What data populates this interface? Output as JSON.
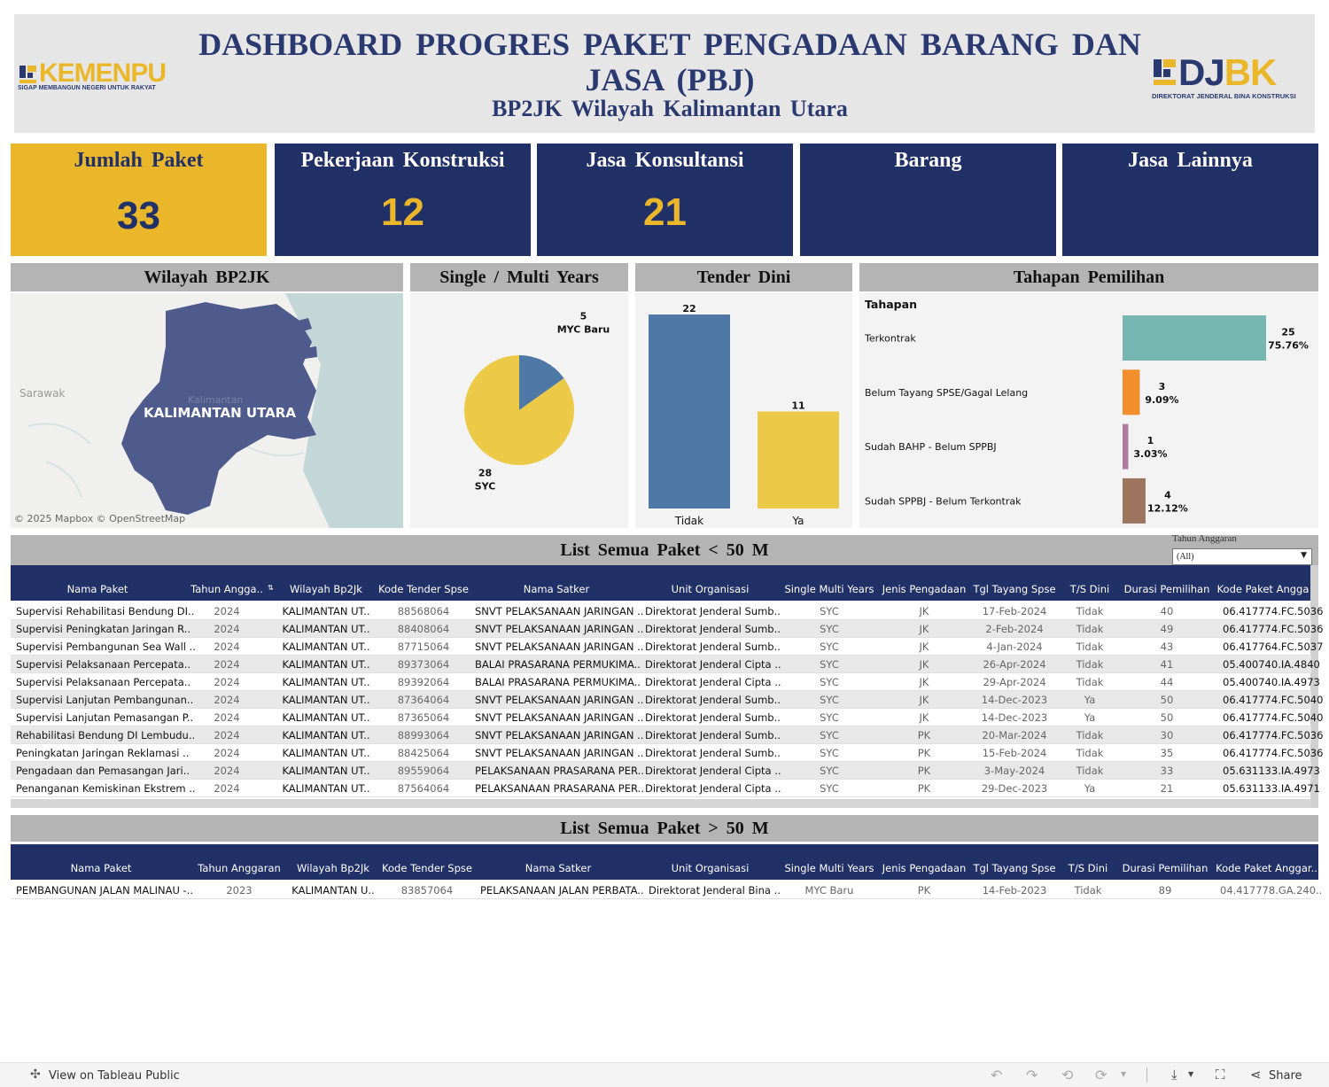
{
  "header": {
    "title": "DASHBOARD PROGRES PAKET PENGADAAN BARANG DAN JASA (PBJ)",
    "subtitle": "BP2JK Wilayah Kalimantan Utara",
    "logo_left": {
      "name": "KEMENPU",
      "tagline": "SIGAP MEMBANGUN NEGERI UNTUK RAKYAT"
    },
    "logo_right": {
      "name": "DJBK",
      "tagline": "DIREKTORAT JENDERAL BINA KONSTRUKSI"
    }
  },
  "kpis": [
    {
      "label": "Jumlah Paket",
      "value": "33"
    },
    {
      "label": "Pekerjaan Konstruksi",
      "value": "12"
    },
    {
      "label": "Jasa Konsultansi",
      "value": "21"
    },
    {
      "label": "Barang",
      "value": ""
    },
    {
      "label": "Jasa Lainnya",
      "value": ""
    }
  ],
  "sections": {
    "map": "Wilayah BP2JK",
    "single_multi": "Single / Multi Years",
    "tender_dini": "Tender Dini",
    "tahapan": "Tahapan Pemilihan",
    "list_small": "List Semua Paket < 50 M",
    "list_large": "List Semua Paket > 50 M"
  },
  "map": {
    "region_label": "KALIMANTAN UTARA",
    "neighbor_label": "Sarawak",
    "faint_label": "Kalimantan",
    "attribution": "© 2025 Mapbox  © OpenStreetMap",
    "region_color": "#4f5b8c",
    "water_color": "#c3d6d8"
  },
  "chart_data": [
    {
      "type": "pie",
      "slices": [
        {
          "label": "MYC Baru",
          "value": 5,
          "color": "#4e79a7"
        },
        {
          "label": "SYC",
          "value": 28,
          "color": "#edc948"
        }
      ]
    },
    {
      "type": "bar",
      "categories": [
        "Tidak",
        "Ya"
      ],
      "values": [
        22,
        11
      ],
      "colors": [
        "#4e79a7",
        "#edc948"
      ]
    },
    {
      "type": "bar",
      "orientation": "horizontal",
      "ylabel": "Tahapan",
      "categories": [
        "Terkontrak",
        "Belum Tayang SPSE/Gagal Lelang",
        "Sudah BAHP - Belum SPPBJ",
        "Sudah SPPBJ - Belum Terkontrak"
      ],
      "values": [
        25,
        3,
        1,
        4
      ],
      "percent_labels": [
        "75.76%",
        "9.09%",
        "3.03%",
        "12.12%"
      ],
      "colors": [
        "#76b7b2",
        "#f28e2b",
        "#b07aa1",
        "#9c755f"
      ]
    }
  ],
  "filter": {
    "label": "Tahun Anggaran",
    "value": "(All)"
  },
  "table_small": {
    "columns": [
      "Nama Paket",
      "Tahun Angga..",
      "Wilayah Bp2Jk",
      "Kode Tender Spse",
      "Nama Satker",
      "Unit Organisasi",
      "Single Multi Years",
      "Jenis Pengadaan",
      "Tgl Tayang Spse",
      "T/S Dini",
      "Durasi Pemilihan",
      "Kode Paket Angga"
    ],
    "rows": [
      [
        "Supervisi Rehabilitasi Bendung DI..",
        "2024",
        "KALIMANTAN UT..",
        "88568064",
        "SNVT PELAKSANAAN JARINGAN ..",
        "Direktorat Jenderal Sumb..",
        "SYC",
        "JK",
        "17-Feb-2024",
        "Tidak",
        "40",
        "06.417774.FC.5036"
      ],
      [
        "Supervisi Peningkatan Jaringan R..",
        "2024",
        "KALIMANTAN UT..",
        "88408064",
        "SNVT PELAKSANAAN JARINGAN ..",
        "Direktorat Jenderal Sumb..",
        "SYC",
        "JK",
        "2-Feb-2024",
        "Tidak",
        "49",
        "06.417774.FC.5036"
      ],
      [
        "Supervisi Pembangunan Sea Wall ..",
        "2024",
        "KALIMANTAN UT..",
        "87715064",
        "SNVT PELAKSANAAN JARINGAN ..",
        "Direktorat Jenderal Sumb..",
        "SYC",
        "JK",
        "4-Jan-2024",
        "Tidak",
        "43",
        "06.417764.FC.5037"
      ],
      [
        "Supervisi Pelaksanaan Percepata..",
        "2024",
        "KALIMANTAN UT..",
        "89373064",
        "BALAI PRASARANA PERMUKIMA..",
        "Direktorat Jenderal Cipta ..",
        "SYC",
        "JK",
        "26-Apr-2024",
        "Tidak",
        "41",
        "05.400740.IA.4840"
      ],
      [
        "Supervisi Pelaksanaan Percepata..",
        "2024",
        "KALIMANTAN UT..",
        "89392064",
        "BALAI PRASARANA PERMUKIMA..",
        "Direktorat Jenderal Cipta ..",
        "SYC",
        "JK",
        "29-Apr-2024",
        "Tidak",
        "44",
        "05.400740.IA.4973"
      ],
      [
        "Supervisi Lanjutan Pembangunan..",
        "2024",
        "KALIMANTAN UT..",
        "87364064",
        "SNVT PELAKSANAAN JARINGAN ..",
        "Direktorat Jenderal Sumb..",
        "SYC",
        "JK",
        "14-Dec-2023",
        "Ya",
        "50",
        "06.417774.FC.5040"
      ],
      [
        "Supervisi Lanjutan Pemasangan P..",
        "2024",
        "KALIMANTAN UT..",
        "87365064",
        "SNVT PELAKSANAAN JARINGAN ..",
        "Direktorat Jenderal Sumb..",
        "SYC",
        "JK",
        "14-Dec-2023",
        "Ya",
        "50",
        "06.417774.FC.5040"
      ],
      [
        "Rehabilitasi Bendung DI Lembudu..",
        "2024",
        "KALIMANTAN UT..",
        "88993064",
        "SNVT PELAKSANAAN JARINGAN ..",
        "Direktorat Jenderal Sumb..",
        "SYC",
        "PK",
        "20-Mar-2024",
        "Tidak",
        "30",
        "06.417774.FC.5036"
      ],
      [
        "Peningkatan Jaringan Reklamasi ..",
        "2024",
        "KALIMANTAN UT..",
        "88425064",
        "SNVT PELAKSANAAN JARINGAN ..",
        "Direktorat Jenderal Sumb..",
        "SYC",
        "PK",
        "15-Feb-2024",
        "Tidak",
        "35",
        "06.417774.FC.5036"
      ],
      [
        "Pengadaan dan Pemasangan Jari..",
        "2024",
        "KALIMANTAN UT..",
        "89559064",
        "PELAKSANAAN PRASARANA PER..",
        "Direktorat Jenderal Cipta ..",
        "SYC",
        "PK",
        "3-May-2024",
        "Tidak",
        "33",
        "05.631133.IA.4973"
      ],
      [
        "Penanganan Kemiskinan Ekstrem ..",
        "2024",
        "KALIMANTAN UT..",
        "87564064",
        "PELAKSANAAN PRASARANA PER..",
        "Direktorat Jenderal Cipta ..",
        "SYC",
        "PK",
        "29-Dec-2023",
        "Ya",
        "21",
        "05.631133.IA.4971"
      ]
    ]
  },
  "table_large": {
    "columns": [
      "Nama Paket",
      "Tahun Anggaran",
      "Wilayah Bp2Jk",
      "Kode Tender Spse",
      "Nama Satker",
      "Unit Organisasi",
      "Single Multi Years",
      "Jenis Pengadaan",
      "Tgl Tayang Spse",
      "T/S Dini",
      "Durasi Pemilihan",
      "Kode Paket Anggar.."
    ],
    "rows": [
      [
        "PEMBANGUNAN JALAN MALINAU -..",
        "2023",
        "KALIMANTAN U..",
        "83857064",
        "PELAKSANAAN JALAN PERBATA..",
        "Direktorat Jenderal Bina ..",
        "MYC Baru",
        "PK",
        "14-Feb-2023",
        "Tidak",
        "89",
        "04.417778.GA.240.."
      ]
    ]
  },
  "footer": {
    "view_label": "View on Tableau Public",
    "share_label": "Share"
  }
}
